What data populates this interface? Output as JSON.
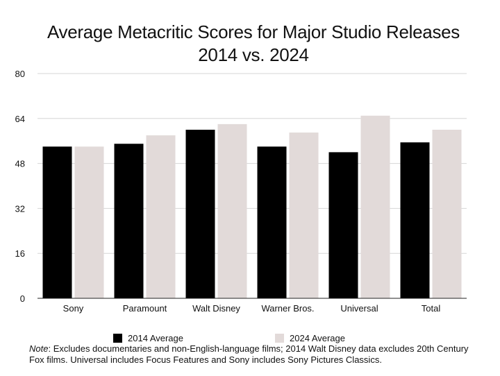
{
  "chart_data": {
    "type": "bar",
    "title": "Average Metacritic Scores for Major Studio Releases 2014 vs. 2024",
    "categories": [
      "Sony",
      "Paramount",
      "Walt Disney",
      "Warner Bros.",
      "Universal",
      "Total"
    ],
    "series": [
      {
        "name": "2014 Average",
        "color": "#000000",
        "values": [
          54,
          55,
          60,
          54,
          52,
          55.5
        ]
      },
      {
        "name": "2024 Average",
        "color": "#e2dad9",
        "values": [
          54,
          58,
          62,
          59,
          65,
          60
        ]
      }
    ],
    "xlabel": "",
    "ylabel": "",
    "ylim": [
      0,
      80
    ],
    "yticks": [
      0,
      16,
      32,
      48,
      64,
      80
    ],
    "grid": true,
    "legend_position": "bottom"
  },
  "note": {
    "prefix": "Note",
    "text": ": Excludes documentaries and non-English-language films; 2014 Walt Disney data excludes 20th Century Fox films. Universal includes Focus Features and Sony includes Sony Pictures Classics."
  }
}
